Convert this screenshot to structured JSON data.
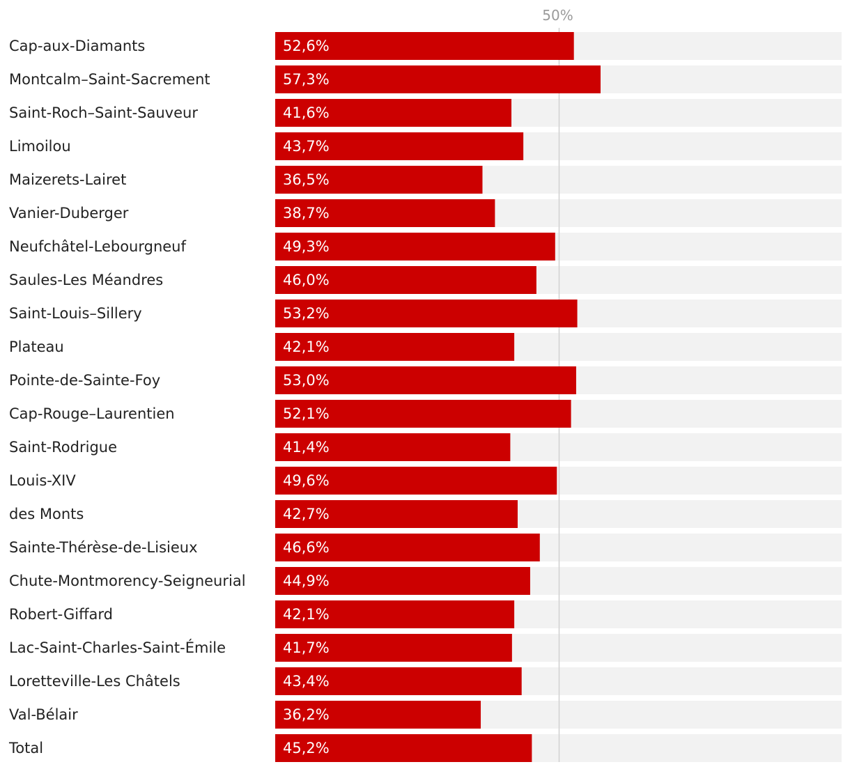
{
  "chart_data": {
    "type": "bar",
    "orientation": "horizontal",
    "title": "",
    "xlabel": "",
    "ylabel": "",
    "xlim": [
      0,
      100
    ],
    "reference_line": {
      "value": 50,
      "label": "50%"
    },
    "colors": {
      "bar": "#cc0000",
      "track": "#f2f2f2",
      "reference_line": "#d0d0d0",
      "label_text": "#222222",
      "value_text": "#ffffff",
      "reference_text": "#9a9a9a"
    },
    "categories": [
      "Cap-aux-Diamants",
      "Montcalm–Saint-Sacrement",
      "Saint-Roch–Saint-Sauveur",
      "Limoilou",
      "Maizerets-Lairet",
      "Vanier-Duberger",
      "Neufchâtel-Lebourgneuf",
      "Saules-Les Méandres",
      "Saint-Louis–Sillery",
      "Plateau",
      "Pointe-de-Sainte-Foy",
      "Cap-Rouge–Laurentien",
      "Saint-Rodrigue",
      "Louis-XIV",
      "des Monts",
      "Sainte-Thérèse-de-Lisieux",
      "Chute-Montmorency-Seigneurial",
      "Robert-Giffard",
      "Lac-Saint-Charles-Saint-Émile",
      "Loretteville-Les Châtels",
      "Val-Bélair",
      "Total"
    ],
    "values": [
      52.6,
      57.3,
      41.6,
      43.7,
      36.5,
      38.7,
      49.3,
      46.0,
      53.2,
      42.1,
      53.0,
      52.1,
      41.4,
      49.6,
      42.7,
      46.6,
      44.9,
      42.1,
      41.7,
      43.4,
      36.2,
      45.2
    ],
    "value_labels": [
      "52,6%",
      "57,3%",
      "41,6%",
      "43,7%",
      "36,5%",
      "38,7%",
      "49,3%",
      "46,0%",
      "53,2%",
      "42,1%",
      "53,0%",
      "52,1%",
      "41,4%",
      "49,6%",
      "42,7%",
      "46,6%",
      "44,9%",
      "42,1%",
      "41,7%",
      "43,4%",
      "36,2%",
      "45,2%"
    ]
  }
}
